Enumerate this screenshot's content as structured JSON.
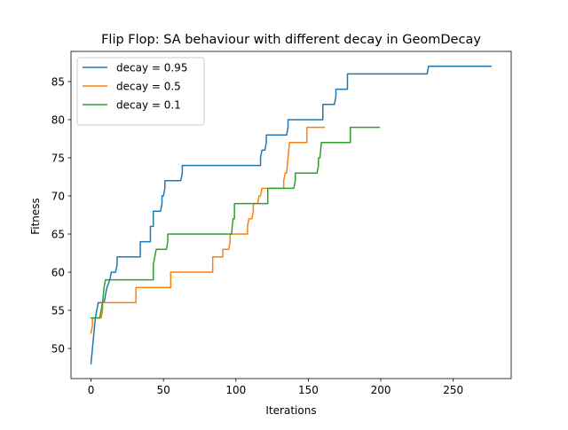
{
  "chart_data": {
    "type": "line",
    "title": "Flip Flop: SA behaviour with different decay in GeomDecay",
    "xlabel": "Iterations",
    "ylabel": "Fitness",
    "xlim": [
      -13.8,
      290
    ],
    "ylim": [
      46.05,
      88.95
    ],
    "xticks": [
      0,
      50,
      100,
      150,
      200,
      250
    ],
    "yticks": [
      50,
      55,
      60,
      65,
      70,
      75,
      80,
      85
    ],
    "grid": false,
    "legend_position": "top-left",
    "series": [
      {
        "name": "decay = 0.95",
        "color": "#1f77b4",
        "points": [
          [
            0,
            48
          ],
          [
            1,
            50
          ],
          [
            2,
            52
          ],
          [
            3,
            54
          ],
          [
            4,
            55
          ],
          [
            5,
            56
          ],
          [
            9,
            56
          ],
          [
            10,
            57
          ],
          [
            11,
            58
          ],
          [
            13,
            59
          ],
          [
            14,
            60
          ],
          [
            17,
            60
          ],
          [
            18,
            61
          ],
          [
            18,
            62
          ],
          [
            34,
            62
          ],
          [
            34,
            64
          ],
          [
            41,
            64
          ],
          [
            41,
            66
          ],
          [
            43,
            66
          ],
          [
            43,
            68
          ],
          [
            48,
            68
          ],
          [
            49,
            69
          ],
          [
            49,
            70
          ],
          [
            50,
            70
          ],
          [
            51,
            71
          ],
          [
            51,
            72
          ],
          [
            62,
            72
          ],
          [
            63,
            73
          ],
          [
            63,
            74
          ],
          [
            117,
            74
          ],
          [
            117,
            75
          ],
          [
            118,
            76
          ],
          [
            120,
            76
          ],
          [
            121,
            77
          ],
          [
            121,
            78
          ],
          [
            135,
            78
          ],
          [
            136,
            79
          ],
          [
            136,
            80
          ],
          [
            160,
            80
          ],
          [
            160,
            82
          ],
          [
            168,
            82
          ],
          [
            169,
            83
          ],
          [
            169,
            84
          ],
          [
            177,
            84
          ],
          [
            177,
            86
          ],
          [
            232,
            86
          ],
          [
            233,
            87
          ],
          [
            276,
            87
          ]
        ]
      },
      {
        "name": "decay = 0.5",
        "color": "#ff7f0e",
        "points": [
          [
            0,
            52
          ],
          [
            1,
            53
          ],
          [
            1,
            54
          ],
          [
            7,
            54
          ],
          [
            8,
            55
          ],
          [
            8,
            56
          ],
          [
            31,
            56
          ],
          [
            31,
            58
          ],
          [
            55,
            58
          ],
          [
            55,
            60
          ],
          [
            84,
            60
          ],
          [
            84,
            62
          ],
          [
            91,
            62
          ],
          [
            91,
            63
          ],
          [
            95,
            63
          ],
          [
            96,
            64
          ],
          [
            96,
            65
          ],
          [
            108,
            65
          ],
          [
            108,
            66
          ],
          [
            109,
            67
          ],
          [
            111,
            67
          ],
          [
            112,
            68
          ],
          [
            112,
            69
          ],
          [
            115,
            69
          ],
          [
            116,
            70
          ],
          [
            117,
            70
          ],
          [
            118,
            71
          ],
          [
            133,
            71
          ],
          [
            133,
            72
          ],
          [
            134,
            73
          ],
          [
            135,
            73
          ],
          [
            136,
            75
          ],
          [
            137,
            77
          ],
          [
            149,
            77
          ],
          [
            149,
            79
          ],
          [
            161,
            79
          ]
        ]
      },
      {
        "name": "decay = 0.1",
        "color": "#2ca02c",
        "points": [
          [
            0,
            54
          ],
          [
            6,
            54
          ],
          [
            7,
            55
          ],
          [
            8,
            56
          ],
          [
            9,
            58
          ],
          [
            10,
            59
          ],
          [
            43,
            59
          ],
          [
            43,
            61
          ],
          [
            45,
            63
          ],
          [
            52,
            63
          ],
          [
            53,
            64
          ],
          [
            53,
            65
          ],
          [
            97,
            65
          ],
          [
            98,
            67
          ],
          [
            99,
            67
          ],
          [
            99,
            69
          ],
          [
            122,
            69
          ],
          [
            122,
            71
          ],
          [
            140,
            71
          ],
          [
            141,
            72
          ],
          [
            141,
            73
          ],
          [
            156,
            73
          ],
          [
            157,
            74
          ],
          [
            157,
            75
          ],
          [
            158,
            75
          ],
          [
            159,
            77
          ],
          [
            179,
            77
          ],
          [
            179,
            79
          ],
          [
            199,
            79
          ]
        ]
      }
    ]
  }
}
